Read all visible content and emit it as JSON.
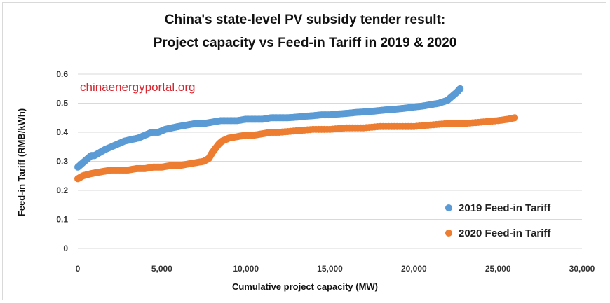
{
  "colors": {
    "series_2019": "#5b9bd5",
    "series_2020": "#ed7d31",
    "grid": "#d9d9d9",
    "watermark": "#d7262f"
  },
  "chart_data": {
    "type": "scatter",
    "title": "China's state-level PV subsidy tender result:",
    "subtitle": "Project capacity vs Feed-in Tariff in 2019 & 2020",
    "xlabel": "Cumulative project capacity  (MW)",
    "ylabel": "Feed-in Tariff  (RMB/kWh)",
    "xlim": [
      0,
      30000
    ],
    "ylim": [
      0,
      0.6
    ],
    "x_ticks": [
      0,
      5000,
      10000,
      15000,
      20000,
      25000,
      30000
    ],
    "x_tick_labels": [
      "0",
      "5,000",
      "10,000",
      "15,000",
      "20,000",
      "25,000",
      "30,000"
    ],
    "y_ticks": [
      0,
      0.1,
      0.2,
      0.3,
      0.4,
      0.5,
      0.6
    ],
    "y_tick_labels": [
      "0",
      "0.1",
      "0.2",
      "0.3",
      "0.4",
      "0.5",
      "0.6"
    ],
    "grid": "horizontal",
    "legend_position": "bottom-right",
    "watermark": "chinaenergyportal.org",
    "series": [
      {
        "name": "2019 Feed-in Tariff",
        "color": "#5b9bd5",
        "x": [
          0,
          200,
          400,
          600,
          800,
          1000,
          1300,
          1600,
          2000,
          2400,
          2800,
          3200,
          3600,
          4000,
          4400,
          4800,
          5200,
          5600,
          6000,
          6500,
          7000,
          7500,
          8000,
          8500,
          9000,
          9500,
          10000,
          10500,
          11000,
          11500,
          12000,
          12500,
          13000,
          13500,
          14000,
          14500,
          15000,
          15500,
          16000,
          16500,
          17000,
          17500,
          18000,
          18500,
          19000,
          19500,
          20000,
          20500,
          21000,
          21500,
          22000,
          22200,
          22400,
          22600,
          22750
        ],
        "y": [
          0.28,
          0.29,
          0.3,
          0.31,
          0.32,
          0.32,
          0.33,
          0.34,
          0.35,
          0.36,
          0.37,
          0.375,
          0.38,
          0.39,
          0.4,
          0.4,
          0.41,
          0.415,
          0.42,
          0.425,
          0.43,
          0.43,
          0.435,
          0.44,
          0.44,
          0.44,
          0.445,
          0.445,
          0.445,
          0.45,
          0.45,
          0.45,
          0.452,
          0.455,
          0.457,
          0.46,
          0.46,
          0.463,
          0.465,
          0.468,
          0.47,
          0.472,
          0.475,
          0.478,
          0.48,
          0.483,
          0.487,
          0.49,
          0.495,
          0.5,
          0.51,
          0.52,
          0.53,
          0.54,
          0.55
        ]
      },
      {
        "name": "2020 Feed-in Tariff",
        "color": "#ed7d31",
        "x": [
          0,
          300,
          600,
          1000,
          1500,
          2000,
          2500,
          3000,
          3500,
          4000,
          4500,
          5000,
          5500,
          6000,
          6500,
          7000,
          7500,
          7800,
          8000,
          8200,
          8400,
          8600,
          8800,
          9000,
          9500,
          10000,
          10500,
          11000,
          11500,
          12000,
          13000,
          14000,
          15000,
          16000,
          17000,
          18000,
          19000,
          20000,
          21000,
          22000,
          23000,
          24000,
          25000,
          25600,
          26000
        ],
        "y": [
          0.24,
          0.25,
          0.255,
          0.26,
          0.265,
          0.27,
          0.27,
          0.27,
          0.275,
          0.275,
          0.28,
          0.28,
          0.285,
          0.285,
          0.29,
          0.295,
          0.3,
          0.31,
          0.33,
          0.345,
          0.36,
          0.37,
          0.375,
          0.38,
          0.385,
          0.39,
          0.39,
          0.395,
          0.4,
          0.4,
          0.405,
          0.41,
          0.41,
          0.415,
          0.415,
          0.42,
          0.42,
          0.42,
          0.425,
          0.43,
          0.43,
          0.435,
          0.44,
          0.445,
          0.45
        ]
      }
    ]
  }
}
